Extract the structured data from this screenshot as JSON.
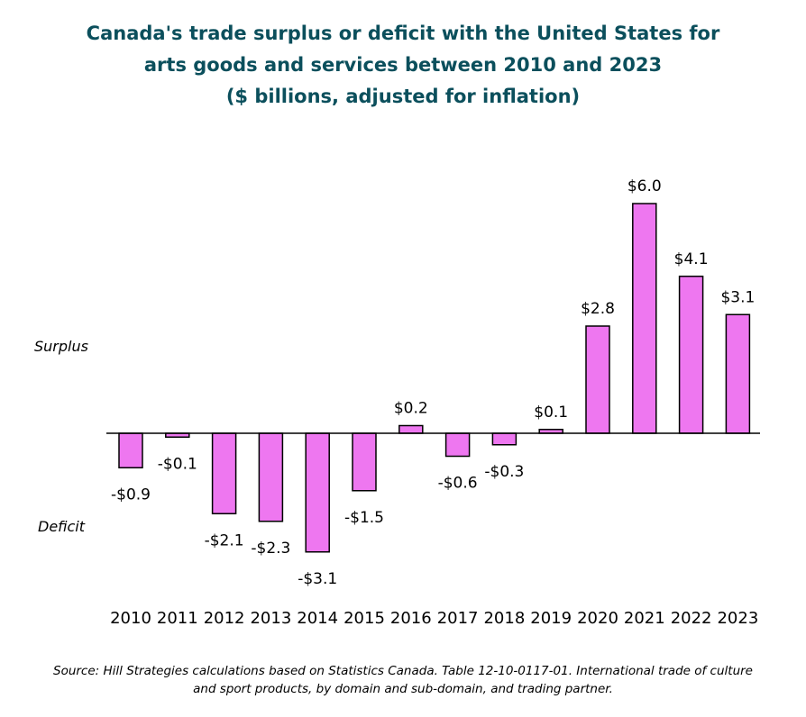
{
  "title_lines": [
    "Canada's trade surplus or deficit with the United States for",
    "arts goods and services between 2010 and 2023",
    "($ billions, adjusted for inflation)"
  ],
  "labels": {
    "surplus": "Surplus",
    "deficit": "Deficit"
  },
  "source_lines": [
    "Source: Hill Strategies calculations based on Statistics Canada. Table 12-10-0117-01. International trade of culture",
    "and sport products, by domain and sub-domain, and trading partner."
  ],
  "colors": {
    "bar_fill": "#ee77f0",
    "bar_stroke": "#000000",
    "title": "#0b4f5c"
  },
  "chart_data": {
    "type": "bar",
    "categories": [
      "2010",
      "2011",
      "2012",
      "2013",
      "2014",
      "2015",
      "2016",
      "2017",
      "2018",
      "2019",
      "2020",
      "2021",
      "2022",
      "2023"
    ],
    "values": [
      -0.9,
      -0.1,
      -2.1,
      -2.3,
      -3.1,
      -1.5,
      0.2,
      -0.6,
      -0.3,
      0.1,
      2.8,
      6.0,
      4.1,
      3.1
    ],
    "data_labels": [
      "-$0.9",
      "-$0.1",
      "-$2.1",
      "-$2.3",
      "-$3.1",
      "-$1.5",
      "$0.2",
      "-$0.6",
      "-$0.3",
      "$0.1",
      "$2.8",
      "$6.0",
      "$4.1",
      "$3.1"
    ],
    "ylim": [
      -3.1,
      6.0
    ],
    "grid": false,
    "legend": "none"
  }
}
